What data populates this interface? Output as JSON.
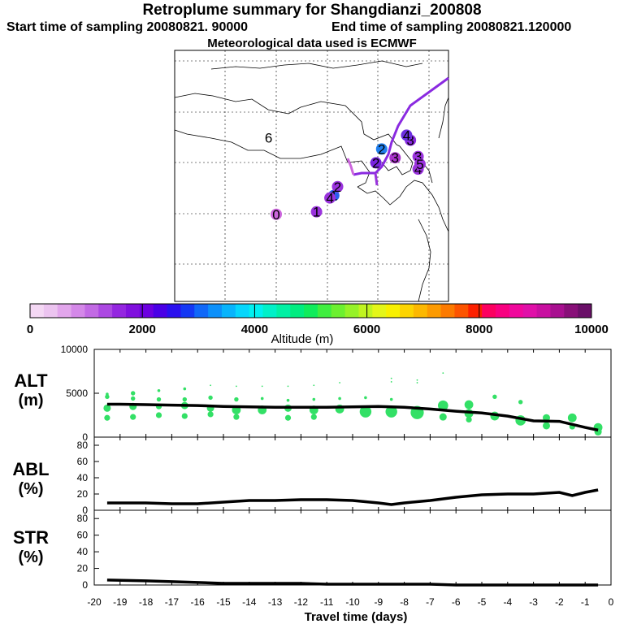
{
  "header": {
    "title": "Retroplume summary for Shangdianzi_200808",
    "start": "Start time of sampling 20080821. 90000",
    "end": "End time of sampling 20080821.120000",
    "met": "Meteorological data used is ECMWF"
  },
  "map": {
    "markers": [
      {
        "label": "0",
        "lon": 0.3,
        "lat": 0.4,
        "color": "#cc66dd"
      },
      {
        "label": "1",
        "lon": 0.51,
        "lat": 0.42,
        "color": "#9a33dd"
      },
      {
        "label": "1",
        "lon": 0.6,
        "lat": 0.55,
        "color": "#2a5fee"
      },
      {
        "label": "2",
        "lon": 0.62,
        "lat": 0.62,
        "color": "#9a33dd"
      },
      {
        "label": "2",
        "lon": 0.82,
        "lat": 0.81,
        "color": "#7722dd"
      },
      {
        "label": "2",
        "lon": 0.85,
        "lat": 0.92,
        "color": "#1f7fee"
      },
      {
        "label": "3",
        "lon": 0.92,
        "lat": 0.85,
        "color": "#aa33cc"
      },
      {
        "label": "3",
        "lon": 1.0,
        "lat": 0.99,
        "color": "#8a2ae0"
      },
      {
        "label": "3",
        "lon": 1.04,
        "lat": 0.86,
        "color": "#9a33dd"
      },
      {
        "label": "4",
        "lon": 0.58,
        "lat": 0.53,
        "color": "#9a33dd"
      },
      {
        "label": "4",
        "lon": 0.98,
        "lat": 1.03,
        "color": "#6b2ee0"
      },
      {
        "label": "4",
        "lon": 1.04,
        "lat": 0.76,
        "color": "#9a33dd"
      },
      {
        "label": "5",
        "lon": 1.05,
        "lat": 0.8,
        "color": "#9a33dd"
      },
      {
        "label": "6",
        "lon": 0.26,
        "lat": 1.01,
        "color": "#000000"
      }
    ]
  },
  "colorbar": {
    "ticks": [
      "0",
      "2000",
      "4000",
      "6000",
      "8000",
      "10000"
    ],
    "label": "Altitude (m)",
    "colors": [
      "#f4d8f4",
      "#ecc4f0",
      "#e2a6ec",
      "#d488e8",
      "#c26ae4",
      "#ac48e2",
      "#9426e0",
      "#8010de",
      "#6c00e0",
      "#4a00e6",
      "#2a10ee",
      "#1438f4",
      "#1068f8",
      "#0c90fa",
      "#08b4fc",
      "#06d6fc",
      "#00f0f0",
      "#00f0c8",
      "#00f0a4",
      "#00ec80",
      "#10ec5c",
      "#40ee40",
      "#6cf030",
      "#96f228",
      "#c0f420",
      "#e4f618",
      "#f8f000",
      "#fcd400",
      "#fcb800",
      "#fc9a00",
      "#fc7a00",
      "#fc5400",
      "#fc2000",
      "#fc0060",
      "#f80080",
      "#f0089c",
      "#e010a8",
      "#c810a0",
      "#a81090",
      "#881078",
      "#6a1068"
    ]
  },
  "chart_data": [
    {
      "type": "line",
      "ylabel_top": "ALT",
      "ylabel_unit": "(m)",
      "ylim": [
        0,
        10000
      ],
      "yticks": [
        "10000",
        "5000",
        "0"
      ],
      "x": [
        -19.5,
        -19,
        -18,
        -17,
        -16,
        -15,
        -14,
        -13,
        -12,
        -11,
        -10,
        -9,
        -8.5,
        -8,
        -7,
        -6,
        -5,
        -4,
        -3,
        -2,
        -1,
        -0.5
      ],
      "values": [
        3750,
        3750,
        3700,
        3650,
        3600,
        3500,
        3450,
        3400,
        3400,
        3400,
        3450,
        3500,
        3450,
        3400,
        3200,
        2950,
        2750,
        2400,
        1850,
        1800,
        1100,
        800
      ],
      "scatter": [
        {
          "x": -19.5,
          "y": 4900,
          "s": 2
        },
        {
          "x": -19.5,
          "y": 4600,
          "s": 3
        },
        {
          "x": -19.5,
          "y": 3300,
          "s": 5
        },
        {
          "x": -19.5,
          "y": 2200,
          "s": 4
        },
        {
          "x": -18.5,
          "y": 5000,
          "s": 3
        },
        {
          "x": -18.5,
          "y": 4400,
          "s": 3
        },
        {
          "x": -18.5,
          "y": 3500,
          "s": 5
        },
        {
          "x": -18.5,
          "y": 2300,
          "s": 4
        },
        {
          "x": -17.5,
          "y": 5300,
          "s": 2
        },
        {
          "x": -17.5,
          "y": 4300,
          "s": 3
        },
        {
          "x": -17.5,
          "y": 3500,
          "s": 4
        },
        {
          "x": -17.5,
          "y": 2500,
          "s": 4
        },
        {
          "x": -16.5,
          "y": 5500,
          "s": 2
        },
        {
          "x": -16.5,
          "y": 4300,
          "s": 3
        },
        {
          "x": -16.5,
          "y": 3600,
          "s": 5
        },
        {
          "x": -16.5,
          "y": 2400,
          "s": 4
        },
        {
          "x": -15.5,
          "y": 5900,
          "s": 1
        },
        {
          "x": -15.5,
          "y": 4500,
          "s": 3
        },
        {
          "x": -15.5,
          "y": 3300,
          "s": 5
        },
        {
          "x": -15.5,
          "y": 2600,
          "s": 4
        },
        {
          "x": -14.5,
          "y": 5800,
          "s": 1
        },
        {
          "x": -14.5,
          "y": 4300,
          "s": 3
        },
        {
          "x": -14.5,
          "y": 3100,
          "s": 6
        },
        {
          "x": -14.5,
          "y": 2300,
          "s": 4
        },
        {
          "x": -13.5,
          "y": 5800,
          "s": 1
        },
        {
          "x": -13.5,
          "y": 4400,
          "s": 2
        },
        {
          "x": -13.5,
          "y": 3100,
          "s": 6
        },
        {
          "x": -12.5,
          "y": 5800,
          "s": 1
        },
        {
          "x": -12.5,
          "y": 4200,
          "s": 2
        },
        {
          "x": -12.5,
          "y": 3300,
          "s": 5
        },
        {
          "x": -12.5,
          "y": 2200,
          "s": 4
        },
        {
          "x": -11.5,
          "y": 5900,
          "s": 1
        },
        {
          "x": -11.5,
          "y": 4300,
          "s": 2
        },
        {
          "x": -11.5,
          "y": 3100,
          "s": 6
        },
        {
          "x": -11.5,
          "y": 2300,
          "s": 4
        },
        {
          "x": -10.5,
          "y": 6200,
          "s": 1
        },
        {
          "x": -10.5,
          "y": 4400,
          "s": 2
        },
        {
          "x": -10.5,
          "y": 3200,
          "s": 6
        },
        {
          "x": -9.5,
          "y": 4500,
          "s": 2
        },
        {
          "x": -9.5,
          "y": 2900,
          "s": 8
        },
        {
          "x": -8.5,
          "y": 6700,
          "s": 1
        },
        {
          "x": -8.5,
          "y": 6300,
          "s": 1
        },
        {
          "x": -8.5,
          "y": 4300,
          "s": 2
        },
        {
          "x": -8.5,
          "y": 2900,
          "s": 8
        },
        {
          "x": -7.5,
          "y": 6500,
          "s": 1
        },
        {
          "x": -7.5,
          "y": 6200,
          "s": 1
        },
        {
          "x": -7.5,
          "y": 2800,
          "s": 9
        },
        {
          "x": -6.5,
          "y": 7300,
          "s": 1
        },
        {
          "x": -6.5,
          "y": 3600,
          "s": 7
        },
        {
          "x": -6.5,
          "y": 2300,
          "s": 5
        },
        {
          "x": -5.5,
          "y": 3700,
          "s": 6
        },
        {
          "x": -5.5,
          "y": 2700,
          "s": 6
        },
        {
          "x": -5.5,
          "y": 2000,
          "s": 4
        },
        {
          "x": -4.5,
          "y": 4600,
          "s": 3
        },
        {
          "x": -4.5,
          "y": 2400,
          "s": 6
        },
        {
          "x": -3.5,
          "y": 4000,
          "s": 3
        },
        {
          "x": -3.5,
          "y": 1900,
          "s": 7
        },
        {
          "x": -2.5,
          "y": 2200,
          "s": 5
        },
        {
          "x": -2.5,
          "y": 1300,
          "s": 5
        },
        {
          "x": -1.5,
          "y": 2200,
          "s": 6
        },
        {
          "x": -1.5,
          "y": 1200,
          "s": 4
        },
        {
          "x": -0.5,
          "y": 1100,
          "s": 6
        },
        {
          "x": -0.5,
          "y": 600,
          "s": 5
        }
      ]
    },
    {
      "type": "line",
      "ylabel_top": "ABL",
      "ylabel_unit": "(%)",
      "ylim": [
        0,
        90
      ],
      "yticks": [
        "80",
        "60",
        "40",
        "20",
        "0"
      ],
      "x": [
        -19.5,
        -18,
        -17,
        -16,
        -15,
        -14,
        -13,
        -12,
        -11,
        -10,
        -9,
        -8.5,
        -8,
        -7,
        -6,
        -5,
        -4,
        -3,
        -2,
        -1.5,
        -1,
        -0.5
      ],
      "values": [
        9,
        9,
        8,
        8,
        10,
        12,
        12,
        13,
        13,
        12,
        9,
        7,
        9,
        12,
        16,
        19,
        20,
        20,
        22,
        18,
        22,
        25
      ]
    },
    {
      "type": "line",
      "ylabel_top": "STR",
      "ylabel_unit": "(%)",
      "ylim": [
        0,
        90
      ],
      "yticks": [
        "80",
        "60",
        "40",
        "20",
        "0"
      ],
      "x": [
        -19.5,
        -18,
        -17,
        -16,
        -15,
        -14,
        -13,
        -12,
        -11,
        -10,
        -9,
        -8,
        -7,
        -6,
        -5,
        -4,
        -3,
        -2,
        -1,
        -0.5
      ],
      "values": [
        6,
        5,
        4,
        3,
        2,
        2,
        2,
        2,
        1,
        1,
        1,
        1,
        1,
        0,
        0,
        0,
        0,
        0,
        0,
        0
      ],
      "xlabel": "Travel time (days)",
      "xticks": [
        "-20",
        "-19",
        "-18",
        "-17",
        "-16",
        "-15",
        "-14",
        "-13",
        "-12",
        "-11",
        "-10",
        "-9",
        "-8",
        "-7",
        "-6",
        "-5",
        "-4",
        "-3",
        "-2",
        "-1",
        "0"
      ]
    }
  ]
}
